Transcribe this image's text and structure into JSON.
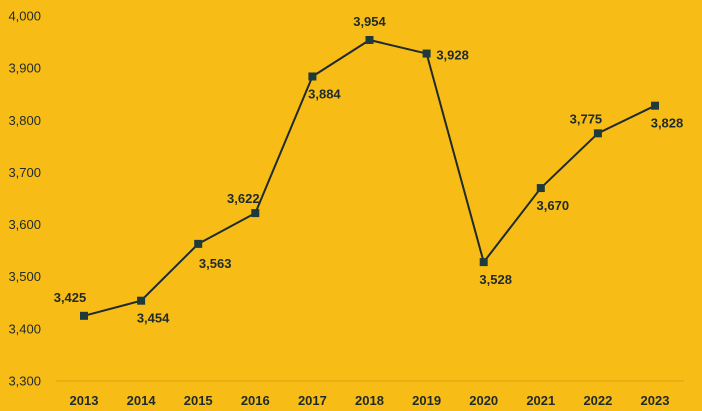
{
  "chart_data": {
    "type": "line",
    "categories": [
      "2013",
      "2014",
      "2015",
      "2016",
      "2017",
      "2018",
      "2019",
      "2020",
      "2021",
      "2022",
      "2023"
    ],
    "series": [
      {
        "values": [
          3425,
          3454,
          3563,
          3622,
          3884,
          3954,
          3928,
          3528,
          3670,
          3775,
          3828
        ],
        "data_labels": [
          "3,425",
          "3,454",
          "3,563",
          "3,622",
          "3,884",
          "3,954",
          "3,928",
          "3,528",
          "3,670",
          "3,775",
          "3,828"
        ]
      }
    ],
    "y_ticks": [
      "3,300",
      "3,400",
      "3,500",
      "3,600",
      "3,700",
      "3,800",
      "3,900",
      "4,000"
    ],
    "ylim": [
      3300,
      4000
    ],
    "grid": false,
    "legend": "none",
    "title": "",
    "xlabel": "",
    "ylabel": "",
    "colors": {
      "background": "#f7bd16",
      "line": "#1f2a2a",
      "marker": "#1f3a3a",
      "axis": "#d9a30f",
      "text": "#1f2a2a"
    }
  }
}
